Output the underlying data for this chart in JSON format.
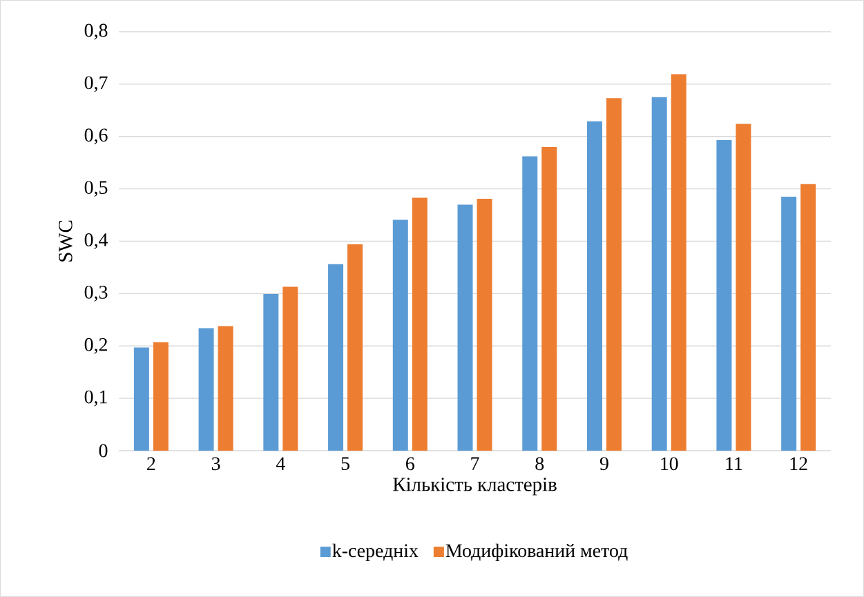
{
  "chart_data": {
    "type": "bar",
    "xlabel": "Кількість кластерів",
    "ylabel": "SWC",
    "categories": [
      "2",
      "3",
      "4",
      "5",
      "6",
      "7",
      "8",
      "9",
      "10",
      "11",
      "12"
    ],
    "series": [
      {
        "name": "k-середніх",
        "color": "#5b9bd5",
        "values": [
          0.197,
          0.234,
          0.299,
          0.356,
          0.441,
          0.47,
          0.562,
          0.629,
          0.675,
          0.593,
          0.485
        ]
      },
      {
        "name": "Модифікований метод",
        "color": "#ed7d31",
        "values": [
          0.207,
          0.238,
          0.313,
          0.394,
          0.483,
          0.481,
          0.58,
          0.673,
          0.719,
          0.624,
          0.509
        ]
      }
    ],
    "ylim": [
      0,
      0.8
    ],
    "yticks": [
      0,
      {
        "value": 0.1,
        "label": "0,1"
      },
      {
        "value": 0.2,
        "label": "0,2"
      },
      {
        "value": 0.3,
        "label": "0,3"
      },
      {
        "value": 0.4,
        "label": "0,4"
      },
      {
        "value": 0.5,
        "label": "0,5"
      },
      {
        "value": 0.6,
        "label": "0,6"
      },
      {
        "value": 0.7,
        "label": "0,7"
      },
      {
        "value": 0.8,
        "label": "0,8"
      }
    ],
    "grid": "y",
    "legend": "bottom"
  }
}
